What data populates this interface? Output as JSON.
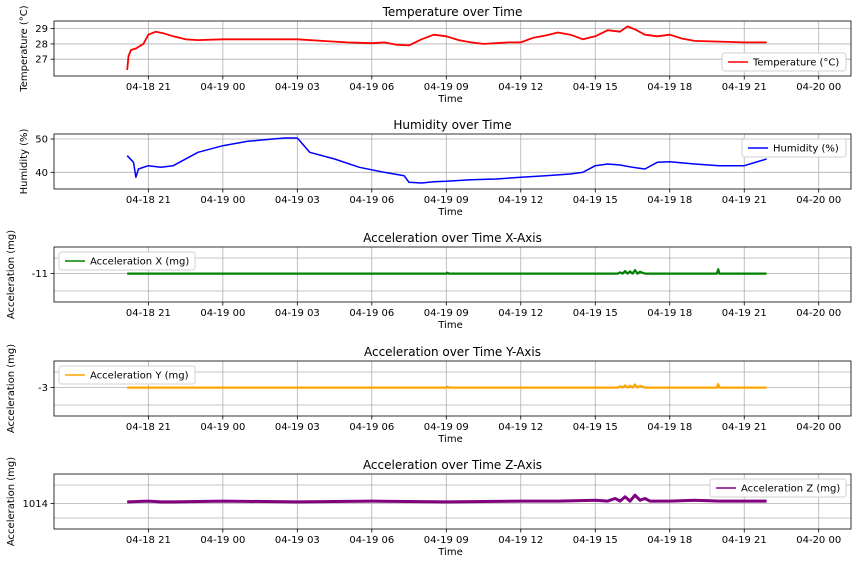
{
  "colors": {
    "temperature": "#ff0000",
    "humidity": "#0000ff",
    "accel_x": "#008000",
    "accel_y": "#ffa500",
    "accel_z": "#800080"
  },
  "x_ticks": [
    "04-18 21",
    "04-19 00",
    "04-19 03",
    "04-19 06",
    "04-19 09",
    "04-19 12",
    "04-19 15",
    "04-19 18",
    "04-19 21",
    "04-20 00"
  ],
  "chart_data": [
    {
      "type": "line",
      "title": "Temperature over Time",
      "xlabel": "Time",
      "ylabel": "Temperature (°C)",
      "ylim": [
        25.9,
        29.5
      ],
      "yticks": [
        27,
        28,
        29
      ],
      "ytick_labels": [
        "27",
        "28",
        "29"
      ],
      "grid": true,
      "legend_position": "bottom-right",
      "series": [
        {
          "name": "Temperature (°C)",
          "x": [
            -0.85,
            -0.8,
            -0.7,
            -0.5,
            -0.2,
            0.0,
            0.3,
            0.6,
            1.0,
            1.5,
            2.0,
            3.0,
            4.0,
            5.0,
            6.0,
            7.0,
            8.0,
            9.0,
            9.5,
            10.0,
            10.5,
            11.0,
            11.5,
            12.0,
            12.5,
            13.0,
            13.5,
            14.0,
            14.5,
            15.0,
            15.5,
            16.0,
            16.5,
            17.0,
            17.5,
            18.0,
            18.5,
            19.0,
            19.3,
            19.6,
            20.0,
            20.5,
            21.0,
            21.5,
            22.0,
            23.0,
            24.0,
            24.9
          ],
          "y": [
            26.3,
            27.2,
            27.6,
            27.7,
            28.0,
            28.6,
            28.8,
            28.7,
            28.5,
            28.3,
            28.25,
            28.3,
            28.3,
            28.3,
            28.3,
            28.2,
            28.1,
            28.05,
            28.1,
            27.95,
            27.9,
            28.3,
            28.6,
            28.5,
            28.25,
            28.1,
            28.0,
            28.05,
            28.1,
            28.1,
            28.4,
            28.55,
            28.75,
            28.6,
            28.3,
            28.5,
            28.9,
            28.8,
            29.15,
            28.95,
            28.6,
            28.5,
            28.6,
            28.35,
            28.2,
            28.15,
            28.1,
            28.1
          ]
        }
      ]
    },
    {
      "type": "line",
      "title": "Humidity over Time",
      "xlabel": "Time",
      "ylabel": "Humidity (%)",
      "ylim": [
        35,
        51.5
      ],
      "yticks": [
        40,
        50
      ],
      "ytick_labels": [
        "40",
        "50"
      ],
      "grid": true,
      "legend_position": "top-right",
      "series": [
        {
          "name": "Humidity (%)",
          "x": [
            -0.85,
            -0.6,
            -0.5,
            -0.4,
            0.0,
            0.5,
            1.0,
            2.0,
            3.0,
            4.0,
            5.0,
            5.5,
            6.0,
            6.5,
            7.5,
            8.5,
            9.5,
            10.3,
            10.5,
            11.0,
            11.5,
            12.0,
            13.0,
            14.0,
            15.0,
            16.0,
            17.0,
            17.5,
            18.0,
            18.5,
            19.0,
            19.5,
            20.0,
            20.5,
            21.0,
            22.0,
            23.0,
            24.0,
            24.9
          ],
          "y": [
            45.0,
            43.0,
            38.5,
            41.0,
            42.0,
            41.5,
            42.0,
            46.0,
            48.0,
            49.3,
            50.0,
            50.3,
            50.3,
            46.0,
            44.0,
            41.5,
            40.0,
            39.0,
            37.0,
            36.8,
            37.2,
            37.3,
            37.8,
            38.0,
            38.5,
            39.0,
            39.5,
            40.0,
            42.0,
            42.5,
            42.2,
            41.5,
            41.0,
            43.0,
            43.2,
            42.5,
            42.0,
            42.0,
            44.0
          ]
        }
      ]
    },
    {
      "type": "line",
      "title": "Acceleration over Time X-Axis",
      "xlabel": "Time",
      "ylabel": "Acceleration (mg)",
      "ylim": [
        -14.2,
        -8.0
      ],
      "yticks": [
        -11
      ],
      "ytick_labels": [
        "-11"
      ],
      "grid": true,
      "legend_position": "top-left",
      "series": [
        {
          "name": "Acceleration X (mg)",
          "x": [
            -0.85,
            2.0,
            5.0,
            9.0,
            12.0,
            12.05,
            12.1,
            16.0,
            18.9,
            19.0,
            19.1,
            19.2,
            19.3,
            19.4,
            19.5,
            19.6,
            19.7,
            19.8,
            20.0,
            22.0,
            22.9,
            22.95,
            23.0,
            24.9
          ],
          "y": [
            -11.0,
            -11.0,
            -11.0,
            -11.0,
            -11.0,
            -10.9,
            -11.0,
            -11.0,
            -11.0,
            -10.85,
            -11.0,
            -10.7,
            -11.0,
            -10.75,
            -11.0,
            -10.6,
            -11.0,
            -10.8,
            -11.0,
            -11.0,
            -11.0,
            -10.5,
            -11.0,
            -11.0
          ]
        }
      ]
    },
    {
      "type": "line",
      "title": "Acceleration over Time Y-Axis",
      "xlabel": "Time",
      "ylabel": "Acceleration (mg)",
      "ylim": [
        -6.2,
        0.0
      ],
      "yticks": [
        -3
      ],
      "ytick_labels": [
        "-3"
      ],
      "grid": true,
      "legend_position": "top-left",
      "series": [
        {
          "name": "Acceleration Y (mg)",
          "x": [
            -0.85,
            2.0,
            5.0,
            9.0,
            12.0,
            12.05,
            12.1,
            16.0,
            18.9,
            19.0,
            19.1,
            19.2,
            19.3,
            19.4,
            19.5,
            19.6,
            19.7,
            19.8,
            20.0,
            22.0,
            22.9,
            22.95,
            23.0,
            24.9
          ],
          "y": [
            -3.0,
            -3.0,
            -3.0,
            -3.0,
            -3.0,
            -2.9,
            -3.0,
            -3.0,
            -3.0,
            -2.85,
            -3.0,
            -2.75,
            -3.0,
            -2.8,
            -3.0,
            -2.65,
            -3.0,
            -2.8,
            -3.0,
            -3.0,
            -3.0,
            -2.6,
            -3.0,
            -3.0
          ]
        }
      ]
    },
    {
      "type": "line",
      "title": "Acceleration over Time Z-Axis",
      "xlabel": "Time",
      "ylabel": "Acceleration (mg)",
      "ylim": [
        1011,
        1017.5
      ],
      "yticks": [
        1014
      ],
      "ytick_labels": [
        "1014"
      ],
      "grid": true,
      "legend_position": "top-right",
      "series": [
        {
          "name": "Acceleration Z (mg)",
          "x": [
            -0.85,
            0.0,
            0.5,
            1.0,
            3.0,
            6.0,
            9.0,
            12.0,
            15.0,
            16.5,
            18.0,
            18.5,
            18.8,
            19.0,
            19.2,
            19.4,
            19.6,
            19.8,
            20.0,
            20.2,
            21.0,
            22.0,
            23.0,
            24.0,
            24.9
          ],
          "y": [
            1014.2,
            1014.3,
            1014.2,
            1014.2,
            1014.3,
            1014.2,
            1014.3,
            1014.2,
            1014.3,
            1014.3,
            1014.4,
            1014.3,
            1014.6,
            1014.3,
            1014.8,
            1014.3,
            1015.0,
            1014.4,
            1014.6,
            1014.3,
            1014.3,
            1014.4,
            1014.3,
            1014.3,
            1014.3
          ]
        }
      ]
    }
  ]
}
